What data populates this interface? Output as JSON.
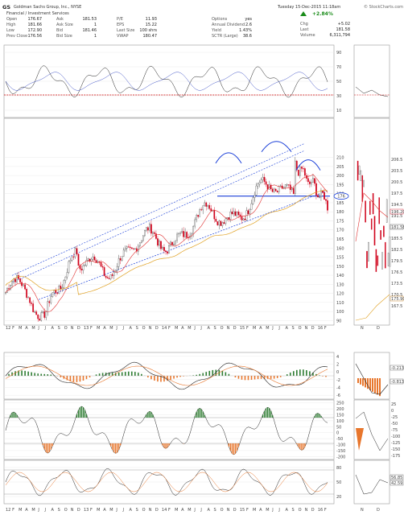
{
  "header": {
    "symbol": "GS",
    "company": "Goldman Sachs Group, Inc., NYSE",
    "date": "Tuesday 15-Dec-2015 11:18am",
    "brand": "© StockCharts.com",
    "sector": "Financial / Investment Services",
    "col1": [
      {
        "label": "Open",
        "value": "176.67"
      },
      {
        "label": "High",
        "value": "181.66"
      },
      {
        "label": "Low",
        "value": "172.90"
      },
      {
        "label": "Prev Close",
        "value": "176.56"
      }
    ],
    "col2": [
      {
        "label": "Ask",
        "value": "181.53"
      },
      {
        "label": "Ask Size",
        "value": "1"
      },
      {
        "label": "Bid",
        "value": "181.46"
      },
      {
        "label": "Bid Size",
        "value": "1"
      }
    ],
    "col3": [
      {
        "label": "P/E",
        "value": "11.93"
      },
      {
        "label": "EPS",
        "value": "15.22"
      },
      {
        "label": "Last Size",
        "value": "100 shrs"
      },
      {
        "label": "VWAP",
        "value": "180.47"
      }
    ],
    "col4": [
      {
        "label": "Options",
        "value": "yes"
      },
      {
        "label": "Annual Dividend",
        "value": "2.6"
      },
      {
        "label": "Yield",
        "value": "1.43%"
      },
      {
        "label": "SCTR (Large)",
        "value": "38.6"
      }
    ],
    "change_pct": "+2.84%",
    "col5": [
      {
        "label": "Chg",
        "value": "+5.02"
      },
      {
        "label": "Last",
        "value": "181.58"
      },
      {
        "label": "Volume",
        "value": "6,311,794"
      }
    ]
  },
  "panels": {
    "rsi_axis": [
      "90",
      "70",
      "50",
      "30",
      "10"
    ],
    "price_axis": [
      "210",
      "205",
      "200",
      "195",
      "190",
      "185",
      "180",
      "175",
      "170",
      "165",
      "160",
      "155",
      "150",
      "140",
      "130",
      "120",
      "110",
      "100",
      "90"
    ],
    "price_axis_right": [
      "206.5",
      "203.5",
      "200.5",
      "197.5",
      "194.5",
      "191.5",
      "188.5",
      "185.5",
      "182.5",
      "179.5",
      "176.5",
      "173.5",
      "170.5",
      "167.5"
    ],
    "price_tag": "176",
    "price_tag_right_top": "196.20",
    "price_tag_right_mid": "181.58",
    "price_tag_right_low": "175.90",
    "macd_axis": [
      "4",
      "2",
      "0",
      "-2",
      "-4",
      "-6"
    ],
    "macd_tag_a": "-0.213",
    "macd_tag_b": "-0.813",
    "cci_axis": [
      "250",
      "200",
      "150",
      "100",
      "50",
      "0",
      "-50",
      "-100",
      "-150",
      "-200"
    ],
    "cci_axis_right": [
      "25",
      "0",
      "-25",
      "-50",
      "-75",
      "-100",
      "-125",
      "-150",
      "-175"
    ],
    "sto_axis": [
      "80",
      "50",
      "20"
    ],
    "sto_tag_a": "56.85",
    "sto_tag_b": "42.59",
    "time_axis_mid": [
      "12",
      "F",
      "M",
      "A",
      "M",
      "J",
      "J",
      "A",
      "S",
      "O",
      "N",
      "D",
      "13",
      "F",
      "M",
      "A",
      "M",
      "J",
      "J",
      "A",
      "S",
      "O",
      "N",
      "D",
      "14",
      "F",
      "M",
      "A",
      "M",
      "J",
      "J",
      "A",
      "S",
      "O",
      "N",
      "D",
      "15",
      "F",
      "M",
      "A",
      "M",
      "J",
      "J",
      "A",
      "S",
      "O",
      "N",
      "D",
      "16",
      "F"
    ],
    "time_axis_right": [
      "N",
      "D"
    ]
  },
  "colors": {
    "up_candle": "#2e8b2e",
    "down_candle": "#d0021b",
    "ma_short": "#e03030",
    "ma_long": "#e0a020",
    "trend": "#1a3fd8",
    "arc": "#1a3fd8",
    "hist_pos": "#2e7d32",
    "hist_neg": "#e8762c"
  }
}
